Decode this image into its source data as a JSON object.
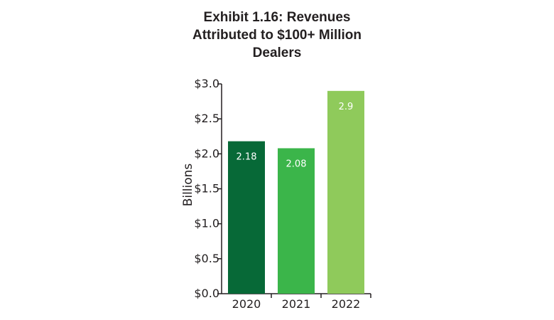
{
  "chart_data": {
    "type": "bar",
    "title_lines": [
      "Exhibit 1.16: Revenues",
      "Attributed to $100+ Million",
      "Dealers"
    ],
    "categories": [
      "2020",
      "2021",
      "2022"
    ],
    "values": [
      2.18,
      2.08,
      2.9
    ],
    "value_labels": [
      "2.18",
      "2.08",
      "2.9"
    ],
    "colors": [
      "#076937",
      "#3bb54a",
      "#8fca5b"
    ],
    "ylabel": "Billions",
    "xlabel": "",
    "ylim": [
      0,
      3.0
    ],
    "yticks": [
      0,
      0.5,
      1.0,
      1.5,
      2.0,
      2.5,
      3.0
    ],
    "ytick_labels": [
      "$0.0",
      "$0.5",
      "$1.0",
      "$1.5",
      "$2.0",
      "$2.5",
      "$3.0"
    ],
    "grid": false,
    "legend": "none"
  }
}
